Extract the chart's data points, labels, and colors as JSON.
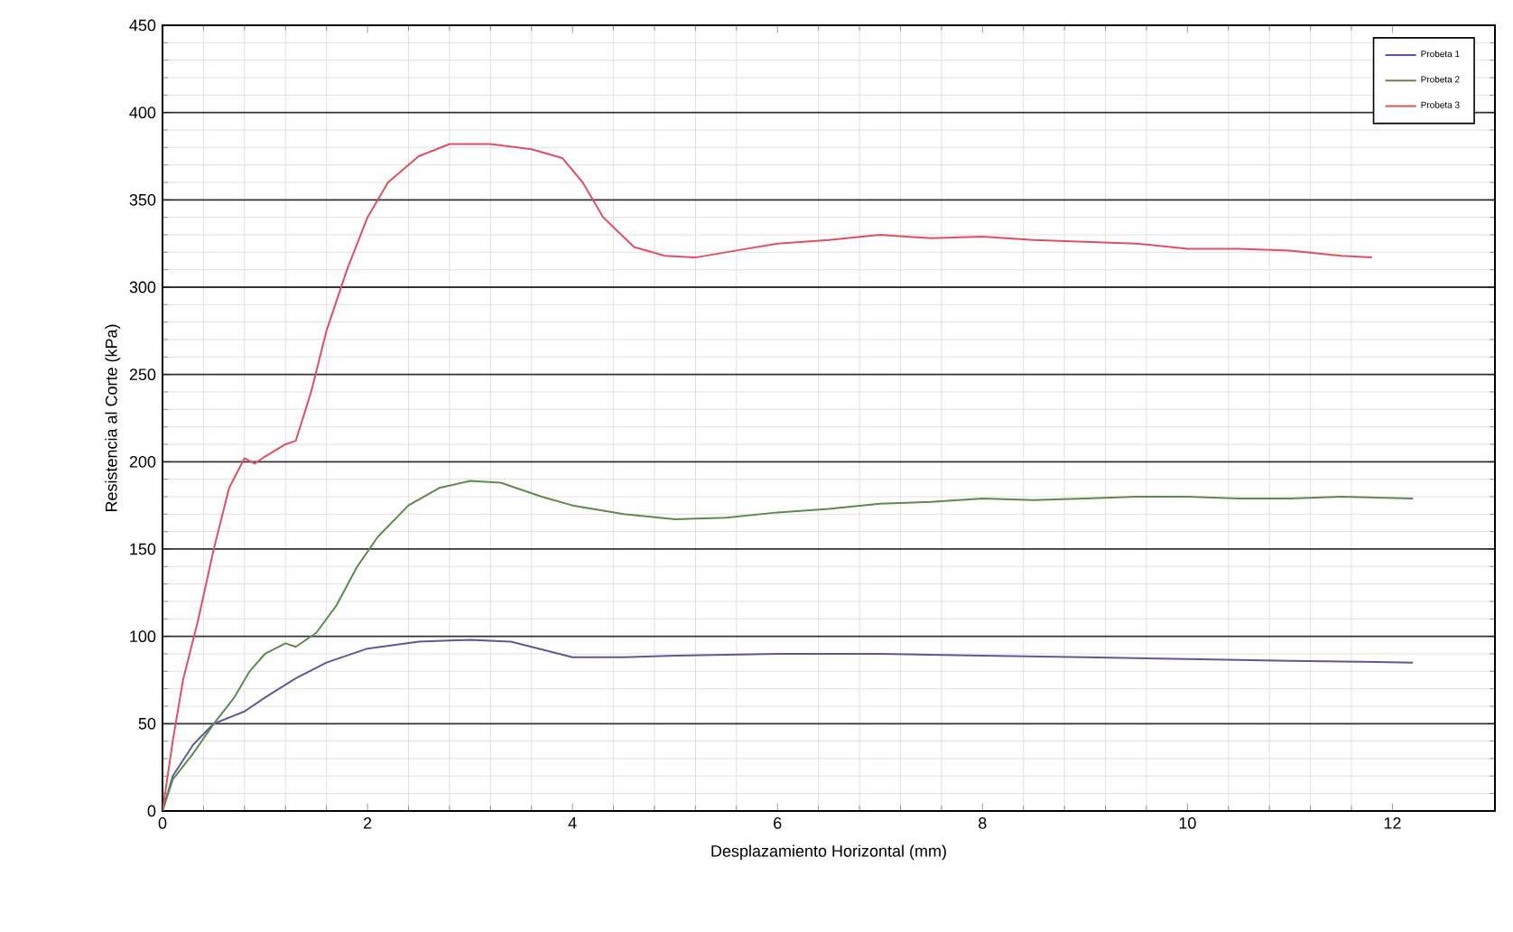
{
  "chart_data": {
    "type": "line",
    "xlabel": "Desplazamiento Horizontal  (mm)",
    "ylabel": "Resistencia  al Corte  (kPa)",
    "xlim": [
      0,
      13
    ],
    "xticks": [
      0,
      2,
      4,
      6,
      8,
      10,
      12
    ],
    "ylim": [
      0,
      450
    ],
    "yticks": [
      0,
      50,
      100,
      150,
      200,
      250,
      300,
      350,
      400,
      450
    ],
    "grid": true,
    "legend": "top right",
    "marker": "none",
    "line_style": "solid",
    "series": [
      {
        "name": "Probeta 1",
        "color": "#5a5a9a",
        "x": [
          0,
          0.1,
          0.3,
          0.5,
          0.8,
          1.0,
          1.3,
          1.6,
          2.0,
          2.5,
          3.0,
          3.4,
          3.8,
          4.0,
          4.5,
          5,
          6,
          7,
          8,
          9,
          10,
          11,
          12.2
        ],
        "values": [
          0,
          20,
          38,
          50,
          57,
          65,
          76,
          85,
          93,
          97,
          98,
          97,
          91,
          88,
          88,
          89,
          90,
          90,
          89,
          88,
          87,
          86,
          85
        ]
      },
      {
        "name": "Probeta 2",
        "color": "#5e8a50",
        "x": [
          0,
          0.1,
          0.3,
          0.5,
          0.7,
          0.85,
          1.0,
          1.2,
          1.3,
          1.5,
          1.7,
          1.9,
          2.1,
          2.4,
          2.7,
          3.0,
          3.3,
          3.7,
          4.0,
          4.5,
          5.0,
          5.5,
          6,
          6.5,
          7,
          7.5,
          8,
          8.5,
          9,
          9.5,
          10,
          10.5,
          11,
          11.5,
          12.2
        ],
        "values": [
          0,
          18,
          33,
          50,
          65,
          80,
          90,
          96,
          94,
          102,
          118,
          140,
          157,
          175,
          185,
          189,
          188,
          180,
          175,
          170,
          167,
          168,
          171,
          173,
          176,
          177,
          179,
          178,
          179,
          180,
          180,
          179,
          179,
          180,
          179
        ]
      },
      {
        "name": "Probeta 3",
        "color": "#e05060",
        "x": [
          0,
          0.1,
          0.2,
          0.35,
          0.5,
          0.65,
          0.8,
          0.9,
          1.0,
          1.2,
          1.3,
          1.45,
          1.6,
          1.8,
          2.0,
          2.2,
          2.5,
          2.8,
          3.2,
          3.6,
          3.9,
          4.1,
          4.3,
          4.6,
          4.9,
          5.2,
          5.6,
          6,
          6.5,
          7,
          7.5,
          8,
          8.5,
          9,
          9.5,
          10,
          10.5,
          11,
          11.5,
          11.8
        ],
        "values": [
          0,
          40,
          75,
          110,
          150,
          185,
          202,
          199,
          203,
          210,
          212,
          240,
          275,
          310,
          340,
          360,
          375,
          382,
          382,
          379,
          374,
          360,
          340,
          323,
          318,
          317,
          321,
          325,
          327,
          330,
          328,
          329,
          327,
          326,
          325,
          322,
          322,
          321,
          318,
          317
        ]
      }
    ]
  }
}
